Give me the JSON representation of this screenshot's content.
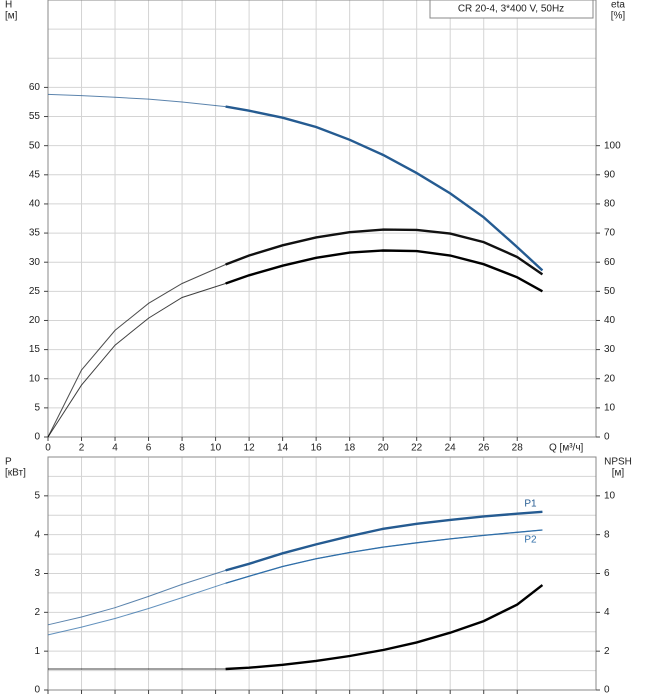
{
  "chart_data": [
    {
      "type": "line",
      "title": "CR 20-4, 3*400 V, 50Hz",
      "ylabel": [
        "H",
        "[м]"
      ],
      "y2label": [
        "eta",
        "[%]"
      ],
      "xlabel": "Q [м³/ч]",
      "x": [
        0,
        2,
        4,
        6,
        8,
        10.6,
        12,
        14,
        16,
        18,
        20,
        22,
        24,
        26,
        28,
        29.5
      ],
      "xlim": [
        0,
        32.7
      ],
      "xticks": [
        0,
        2,
        4,
        6,
        8,
        10,
        12,
        14,
        16,
        18,
        20,
        22,
        24,
        26,
        28
      ],
      "xtick_labels": true,
      "ylim": [
        0,
        75
      ],
      "yticks": [
        0,
        5,
        10,
        15,
        20,
        25,
        30,
        35,
        40,
        45,
        50,
        55,
        60
      ],
      "ygrid": [
        65,
        70
      ],
      "y2lim": [
        0,
        150
      ],
      "y2ticks": [
        0,
        10,
        20,
        30,
        40,
        50,
        60,
        70,
        80,
        90,
        100
      ],
      "grid": true,
      "bold_from": 10.6,
      "series": [
        {
          "color": "#255b91",
          "axis": "y",
          "values": [
            58.8,
            58.6,
            58.3,
            58.0,
            57.5,
            56.7,
            56.0,
            54.8,
            53.2,
            51.0,
            48.4,
            45.3,
            41.8,
            37.7,
            32.6,
            28.6
          ]
        },
        {
          "color": "#111111",
          "axis": "y2",
          "values": [
            0,
            23,
            36.6,
            45.9,
            52.7,
            59.2,
            62.3,
            65.8,
            68.5,
            70.3,
            71.2,
            71.1,
            69.8,
            66.9,
            61.8,
            55.8
          ]
        },
        {
          "color": "#000000",
          "axis": "y2",
          "values": [
            0,
            17.8,
            31.5,
            40.8,
            47.9,
            52.7,
            55.5,
            58.8,
            61.5,
            63.3,
            64.0,
            63.8,
            62.3,
            59.3,
            54.8,
            50.0
          ]
        }
      ]
    },
    {
      "type": "line",
      "ylabel": [
        "P",
        "[кВт]"
      ],
      "y2label": [
        "NPSH",
        "[м]"
      ],
      "x": [
        0,
        2,
        4,
        6,
        8,
        10.6,
        12,
        14,
        16,
        18,
        20,
        22,
        24,
        26,
        28,
        29.5
      ],
      "xlim": [
        0,
        32.7
      ],
      "xticks": [
        0,
        2,
        4,
        6,
        8,
        10,
        12,
        14,
        16,
        18,
        20,
        22,
        24,
        26,
        28
      ],
      "xtick_labels": false,
      "ylim": [
        0,
        6
      ],
      "yticks": [
        0,
        1,
        2,
        3,
        4,
        5
      ],
      "ygrid": [
        0.5,
        1.5,
        2.5,
        3.5,
        4.5,
        5.5
      ],
      "y2lim": [
        0,
        12
      ],
      "y2ticks": [
        0,
        2,
        4,
        6,
        8,
        10
      ],
      "grid": true,
      "bold_from": 10.6,
      "series": [
        {
          "name": "P1",
          "color": "#255b91",
          "axis": "y",
          "values": [
            1.68,
            1.88,
            2.12,
            2.41,
            2.72,
            3.08,
            3.25,
            3.52,
            3.75,
            3.96,
            4.15,
            4.28,
            4.38,
            4.47,
            4.54,
            4.59
          ]
        },
        {
          "name": "P2",
          "color": "#2f6ea8",
          "axis": "y",
          "thin": true,
          "values": [
            1.42,
            1.62,
            1.84,
            2.1,
            2.38,
            2.75,
            2.93,
            3.18,
            3.38,
            3.54,
            3.68,
            3.79,
            3.89,
            3.98,
            4.06,
            4.12
          ]
        },
        {
          "color": "#000000",
          "axis": "y2",
          "values": [
            1.08,
            1.08,
            1.08,
            1.08,
            1.08,
            1.08,
            1.15,
            1.3,
            1.5,
            1.75,
            2.06,
            2.45,
            2.95,
            3.55,
            4.4,
            5.4
          ]
        }
      ]
    }
  ]
}
